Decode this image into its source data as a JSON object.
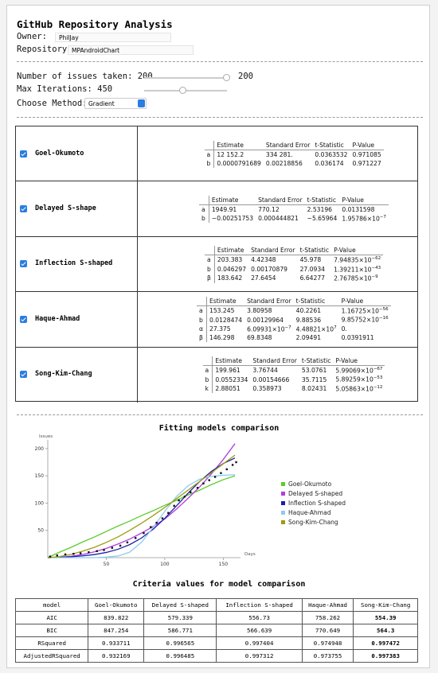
{
  "title": "GitHub Repository Analysis",
  "owner": {
    "label": "Owner:",
    "value": "PhilJay"
  },
  "repository": {
    "label": "Repository:",
    "value": "MPAndroidChart"
  },
  "issues": {
    "label": "Number of issues taken:",
    "value": 200,
    "slider_value": 200
  },
  "iterations": {
    "label": "Max Iterations:",
    "value": 450
  },
  "method": {
    "label": "Choose Method:",
    "value": "Gradient"
  },
  "models": [
    {
      "name": "Goel-Okumoto",
      "columns": [
        "Estimate",
        "Standard Error",
        "t-Statistic",
        "P-Value"
      ],
      "rows": [
        [
          "a",
          "12 152.2",
          "334 281.",
          "0.0363532",
          "0.971085"
        ],
        [
          "b",
          "0.0000791689",
          "0.00218856",
          "0.036174",
          "0.971227"
        ]
      ]
    },
    {
      "name": "Delayed S-shape",
      "columns": [
        "Estimate",
        "Standard Error",
        "t-Statistic",
        "P-Value"
      ],
      "rows": [
        [
          "a",
          "1949.91",
          "770.12",
          "2.53196",
          "0.0131598"
        ],
        [
          "b",
          "−0.00251753",
          "0.000444821",
          "−5.65964",
          {
            "base": "1.95786×10",
            "sup": "−7"
          }
        ]
      ]
    },
    {
      "name": "Inflection S-shaped",
      "columns": [
        "Estimate",
        "Standard Error",
        "t-Statistic",
        "P-Value"
      ],
      "rows": [
        [
          "a",
          "203.383",
          "4.42348",
          "45.978",
          {
            "base": "7.94835×10",
            "sup": "−62"
          }
        ],
        [
          "b",
          "0.046297",
          "0.00170879",
          "27.0934",
          {
            "base": "1.39211×10",
            "sup": "−43"
          }
        ],
        [
          "β",
          "183.642",
          "27.6454",
          "6.64277",
          {
            "base": "2.76785×10",
            "sup": "−9"
          }
        ]
      ]
    },
    {
      "name": "Haque-Ahmad",
      "columns": [
        "Estimate",
        "Standard Error",
        "t-Statistic",
        "P-Value"
      ],
      "rows": [
        [
          "a",
          "153.245",
          "3.80958",
          "40.2261",
          {
            "base": "1.16725×10",
            "sup": "−56"
          }
        ],
        [
          "b",
          "0.0128474",
          "0.00129964",
          "9.88536",
          {
            "base": "9.85752×10",
            "sup": "−16"
          }
        ],
        [
          "α",
          "27.375",
          {
            "base": "6.09931×10",
            "sup": "−7"
          },
          {
            "base": "4.48821×10",
            "sup": "7"
          },
          "0."
        ],
        [
          "β",
          "146.298",
          "69.8348",
          "2.09491",
          "0.0391911"
        ]
      ]
    },
    {
      "name": "Song-Kim-Chang",
      "columns": [
        "Estimate",
        "Standard Error",
        "t-Statistic",
        "P-Value"
      ],
      "rows": [
        [
          "a",
          "199.961",
          "3.76744",
          "53.0761",
          {
            "base": "5.99069×10",
            "sup": "−67"
          }
        ],
        [
          "b",
          "0.0552334",
          "0.00154666",
          "35.7115",
          {
            "base": "5.89259×10",
            "sup": "−53"
          }
        ],
        [
          "k",
          "2.88051",
          "0.358973",
          "8.02431",
          {
            "base": "5.05863×10",
            "sup": "−12"
          }
        ]
      ]
    }
  ],
  "chart_data": {
    "type": "line",
    "title": "Fitting models comparison",
    "x_label": "Days",
    "y_label": "Issues",
    "x": [
      0,
      10,
      20,
      30,
      40,
      50,
      60,
      70,
      80,
      90,
      100,
      110,
      120,
      130,
      140,
      150,
      160
    ],
    "series": [
      {
        "name": "Goel-Okumoto",
        "color": "#5ccc2c",
        "values": [
          0,
          10,
          19,
          29,
          38,
          48,
          58,
          67,
          77,
          86,
          96,
          105,
          115,
          124,
          134,
          143,
          150
        ]
      },
      {
        "name": "Delayed S-shaped",
        "color": "#b03ee0",
        "values": [
          0,
          0.6,
          2.6,
          5.9,
          10.7,
          17,
          25,
          34,
          45,
          57,
          71,
          89,
          109,
          130,
          154,
          180,
          209
        ]
      },
      {
        "name": "Inflection S-shaped",
        "color": "#1e1ea8",
        "values": [
          0,
          0.65,
          1.66,
          3.26,
          5.75,
          9.57,
          15.4,
          23.9,
          35.9,
          52,
          72.1,
          94.9,
          118.4,
          140.1,
          158.4,
          172.6,
          182.8
        ]
      },
      {
        "name": "Haque-Ahmad",
        "color": "#8ecbef",
        "values": [
          0,
          0,
          0,
          0,
          0,
          1,
          3,
          10,
          28,
          55,
          85,
          112,
          132,
          144,
          149,
          151,
          152
        ]
      },
      {
        "name": "Song-Kim-Chang",
        "color": "#9c9c10",
        "values": [
          0,
          2,
          6,
          12,
          19,
          28,
          38,
          50,
          63,
          77,
          92,
          108,
          124,
          140,
          156,
          172,
          188
        ]
      }
    ],
    "points": {
      "color": "#111111",
      "x": [
        2,
        8,
        15,
        22,
        28,
        35,
        42,
        48,
        55,
        62,
        68,
        75,
        82,
        88,
        93,
        98,
        103,
        108,
        112,
        117,
        122,
        128,
        133,
        138,
        143,
        148,
        153,
        158,
        161
      ],
      "y": [
        2,
        4,
        6,
        7,
        8,
        10,
        12,
        14,
        18,
        22,
        28,
        36,
        45,
        56,
        64,
        72,
        82,
        95,
        105,
        112,
        120,
        128,
        136,
        142,
        148,
        155,
        162,
        170,
        175
      ]
    },
    "xlim": [
      0,
      162
    ],
    "ylim": [
      0,
      210
    ],
    "xticks": [
      50,
      100,
      150
    ],
    "yticks": [
      50,
      100,
      150,
      200
    ],
    "legend": "right"
  },
  "criteria": {
    "title": "Criteria values for model comparison",
    "header": [
      "model",
      "Goel-Okumoto",
      "Delayed S-shaped",
      "Inflection S-shaped",
      "Haque-Ahmad",
      "Song-Kim-Chang"
    ],
    "rows": [
      [
        "AIC",
        "839.822",
        "579.339",
        "556.73",
        "758.262",
        "554.39"
      ],
      [
        "BIC",
        "847.254",
        "586.771",
        "566.639",
        "770.649",
        "564.3"
      ],
      [
        "RSquared",
        "0.933711",
        "0.996565",
        "0.997404",
        "0.974948",
        "0.997472"
      ],
      [
        "AdjustedRSquared",
        "0.932169",
        "0.996485",
        "0.997312",
        "0.973755",
        "0.997383"
      ]
    ]
  }
}
